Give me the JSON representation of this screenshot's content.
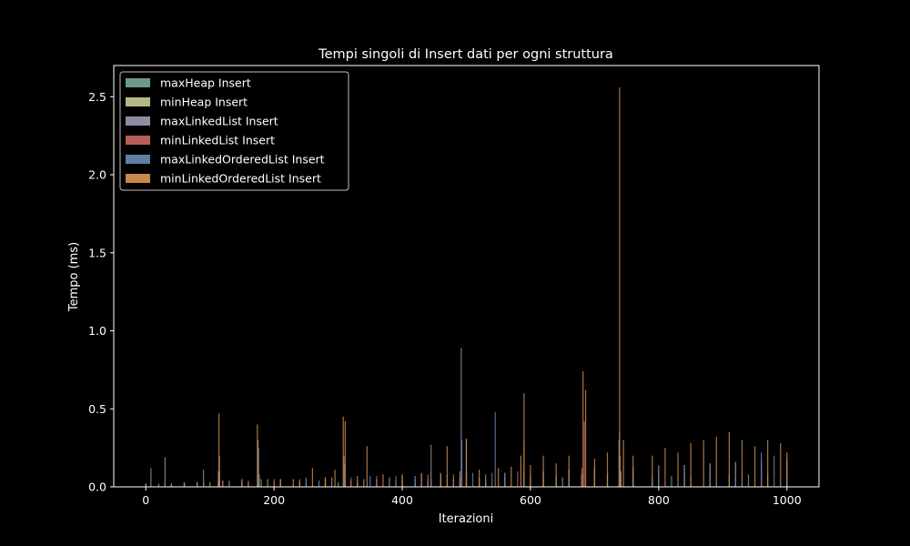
{
  "chart_data": {
    "type": "bar",
    "title": "Tempi singoli di Insert dati per ogni struttura",
    "xlabel": "Iterazioni",
    "ylabel": "Tempo (ms)",
    "xlim": [
      -50,
      1050
    ],
    "ylim": [
      0,
      2.7
    ],
    "xticks": [
      0,
      200,
      400,
      600,
      800,
      1000
    ],
    "yticks": [
      0.0,
      0.5,
      1.0,
      1.5,
      2.0,
      2.5
    ],
    "xtick_labels": [
      "0",
      "200",
      "400",
      "600",
      "800",
      "1000"
    ],
    "ytick_labels": [
      "0.0",
      "0.5",
      "1.0",
      "1.5",
      "2.0",
      "2.5"
    ],
    "grid": false,
    "legend_position": "top-left",
    "background": "#000000",
    "series": [
      {
        "name": "maxHeap Insert",
        "color": "#6b9a8e",
        "x": [
          0,
          30,
          60,
          90,
          113,
          115,
          150,
          175,
          180,
          210,
          240,
          270,
          300,
          310,
          330,
          360,
          390,
          420,
          445,
          460,
          480,
          500,
          530,
          560,
          590,
          620,
          650,
          680,
          700,
          740,
          760,
          790,
          820,
          850,
          880,
          910,
          940,
          970,
          1000
        ],
        "values": [
          0.02,
          0.03,
          0.02,
          0.03,
          0.04,
          0.05,
          0.03,
          0.06,
          0.05,
          0.03,
          0.03,
          0.04,
          0.03,
          0.05,
          0.04,
          0.04,
          0.04,
          0.05,
          0.05,
          0.05,
          0.05,
          0.06,
          0.05,
          0.06,
          0.06,
          0.06,
          0.06,
          0.07,
          0.07,
          0.08,
          0.07,
          0.07,
          0.07,
          0.07,
          0.07,
          0.08,
          0.08,
          0.08,
          0.08
        ]
      },
      {
        "name": "minHeap Insert",
        "color": "#b5b682",
        "x": [
          0,
          40,
          80,
          115,
          120,
          160,
          176,
          200,
          240,
          280,
          310,
          320,
          360,
          400,
          440,
          480,
          520,
          560,
          600,
          640,
          680,
          720,
          741,
          760,
          800,
          840,
          880,
          920,
          960,
          1000
        ],
        "values": [
          0.02,
          0.02,
          0.03,
          0.06,
          0.04,
          0.03,
          0.07,
          0.03,
          0.04,
          0.04,
          0.06,
          0.04,
          0.05,
          0.05,
          0.05,
          0.06,
          0.06,
          0.06,
          0.07,
          0.07,
          0.08,
          0.08,
          0.1,
          0.08,
          0.08,
          0.08,
          0.09,
          0.09,
          0.09,
          0.09
        ]
      },
      {
        "name": "maxLinkedList Insert",
        "color": "#8e8ca3",
        "x": [
          0,
          8,
          30,
          60,
          90,
          115,
          150,
          175,
          177,
          210,
          250,
          290,
          310,
          340,
          380,
          420,
          445,
          460,
          490,
          492,
          500,
          530,
          560,
          590,
          620,
          660,
          700,
          739,
          760,
          800,
          840,
          880,
          920,
          960,
          1000
        ],
        "values": [
          0.02,
          0.12,
          0.19,
          0.03,
          0.11,
          0.1,
          0.05,
          0.3,
          0.08,
          0.04,
          0.05,
          0.06,
          0.12,
          0.05,
          0.06,
          0.07,
          0.27,
          0.08,
          0.06,
          0.89,
          0.31,
          0.08,
          0.09,
          0.1,
          0.1,
          0.11,
          0.12,
          0.35,
          0.12,
          0.13,
          0.14,
          0.15,
          0.16,
          0.17,
          0.18
        ]
      },
      {
        "name": "minLinkedList Insert",
        "color": "#b55f57",
        "x": [
          0,
          40,
          80,
          115,
          120,
          160,
          175,
          200,
          240,
          280,
          309,
          320,
          360,
          400,
          440,
          480,
          500,
          540,
          580,
          590,
          620,
          660,
          680,
          684,
          700,
          740,
          760,
          800,
          840,
          880,
          920,
          960,
          1000
        ],
        "values": [
          0.02,
          0.02,
          0.03,
          0.2,
          0.04,
          0.04,
          0.15,
          0.05,
          0.05,
          0.06,
          0.2,
          0.06,
          0.07,
          0.07,
          0.08,
          0.08,
          0.09,
          0.09,
          0.1,
          0.3,
          0.1,
          0.11,
          0.12,
          0.42,
          0.12,
          0.2,
          0.13,
          0.14,
          0.14,
          0.15,
          0.15,
          0.16,
          0.16
        ]
      },
      {
        "name": "maxLinkedOrderedList Insert",
        "color": "#5f7fa4",
        "x": [
          0,
          30,
          60,
          90,
          113,
          150,
          176,
          210,
          250,
          290,
          310,
          350,
          390,
          430,
          470,
          493,
          510,
          545,
          560,
          590,
          620,
          660,
          700,
          738,
          760,
          800,
          840,
          880,
          920,
          960,
          980,
          1000
        ],
        "values": [
          0.02,
          0.03,
          0.03,
          0.04,
          0.1,
          0.05,
          0.25,
          0.05,
          0.06,
          0.06,
          0.15,
          0.07,
          0.07,
          0.08,
          0.08,
          0.3,
          0.09,
          0.48,
          0.09,
          0.1,
          0.1,
          0.11,
          0.12,
          0.3,
          0.12,
          0.13,
          0.14,
          0.15,
          0.16,
          0.22,
          0.2,
          0.17
        ]
      },
      {
        "name": "minLinkedOrderedList Insert",
        "color": "#c9884b",
        "x": [
          0,
          20,
          40,
          60,
          80,
          100,
          114,
          130,
          150,
          174,
          190,
          210,
          230,
          260,
          280,
          295,
          308,
          311,
          330,
          345,
          370,
          400,
          430,
          460,
          470,
          490,
          500,
          520,
          550,
          570,
          585,
          590,
          600,
          620,
          640,
          660,
          682,
          686,
          700,
          720,
          739,
          745,
          760,
          790,
          810,
          830,
          850,
          870,
          890,
          910,
          930,
          950,
          970,
          990,
          1000
        ],
        "values": [
          0.02,
          0.02,
          0.02,
          0.02,
          0.03,
          0.03,
          0.47,
          0.04,
          0.04,
          0.4,
          0.05,
          0.05,
          0.05,
          0.12,
          0.06,
          0.11,
          0.45,
          0.42,
          0.07,
          0.26,
          0.08,
          0.08,
          0.09,
          0.09,
          0.26,
          0.1,
          0.3,
          0.11,
          0.12,
          0.13,
          0.2,
          0.6,
          0.14,
          0.2,
          0.15,
          0.2,
          0.74,
          0.62,
          0.18,
          0.22,
          2.56,
          0.3,
          0.2,
          0.2,
          0.25,
          0.22,
          0.28,
          0.3,
          0.32,
          0.35,
          0.3,
          0.26,
          0.3,
          0.28,
          0.22
        ]
      }
    ]
  }
}
